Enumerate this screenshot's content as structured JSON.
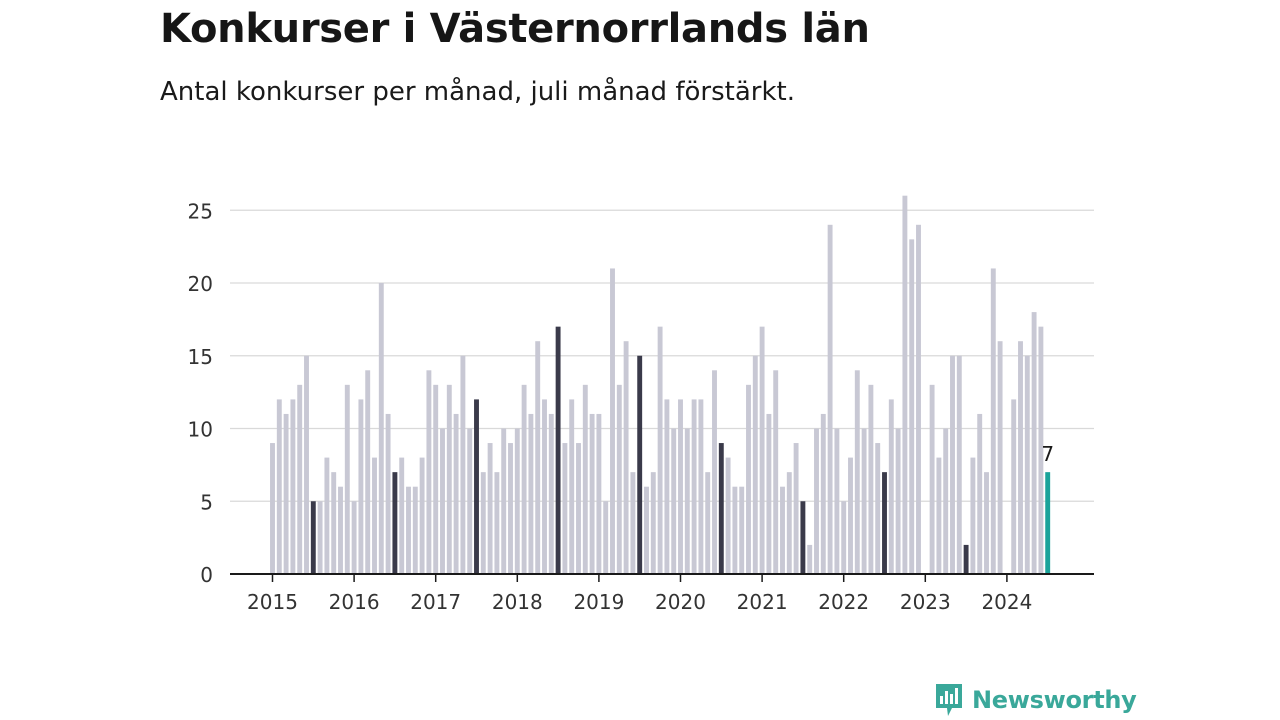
{
  "title": "Konkurser i Västernorrlands län",
  "subtitle": "Antal konkurser per månad, juli månad förstärkt.",
  "brand": {
    "name": "Newsworthy",
    "icon": "newsworthy-logo-icon",
    "color": "#3aa89a"
  },
  "colors": {
    "bar": "#c8c8d4",
    "highlight": "#3a3a4a",
    "latest": "#1aa39a",
    "grid": "#d9d9d9",
    "axis": "#1a1a1a"
  },
  "chart_data": {
    "type": "bar",
    "x_start": "2015-01",
    "x_end": "2024-07",
    "xlabel": "",
    "ylabel": "",
    "ylim": [
      0,
      26
    ],
    "yticks": [
      0,
      5,
      10,
      15,
      20,
      25
    ],
    "xticks": [
      "2015",
      "2016",
      "2017",
      "2018",
      "2019",
      "2020",
      "2021",
      "2022",
      "2023",
      "2024"
    ],
    "grid": true,
    "highlight_month": "juli",
    "values": [
      9,
      12,
      11,
      12,
      13,
      15,
      5,
      5,
      8,
      7,
      6,
      13,
      5,
      12,
      14,
      8,
      20,
      11,
      7,
      8,
      6,
      6,
      8,
      14,
      13,
      10,
      13,
      11,
      15,
      10,
      12,
      7,
      9,
      7,
      10,
      9,
      10,
      13,
      11,
      16,
      12,
      11,
      17,
      9,
      12,
      9,
      13,
      11,
      11,
      5,
      21,
      13,
      16,
      7,
      15,
      6,
      7,
      17,
      12,
      10,
      12,
      10,
      12,
      12,
      7,
      14,
      9,
      8,
      6,
      6,
      13,
      15,
      17,
      11,
      14,
      6,
      7,
      9,
      5,
      2,
      10,
      11,
      24,
      10,
      5,
      8,
      14,
      10,
      13,
      9,
      7,
      12,
      10,
      26,
      23,
      24,
      0,
      13,
      8,
      10,
      15,
      15,
      2,
      8,
      11,
      7,
      21,
      16,
      0,
      12,
      16,
      15,
      18,
      17,
      7
    ],
    "annotations": [
      {
        "label": "7"
      }
    ]
  }
}
